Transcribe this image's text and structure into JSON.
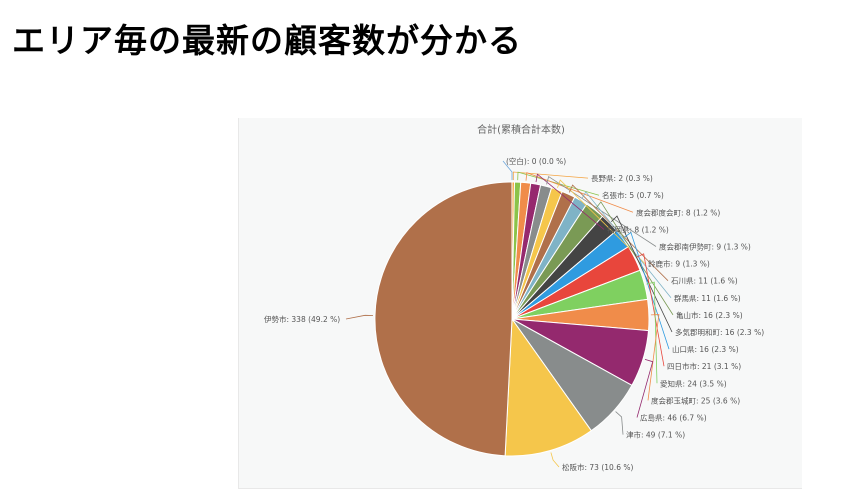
{
  "page": {
    "title": "エリア毎の最新の顧客数が分かる"
  },
  "chart_data": {
    "type": "pie",
    "title": "合計(累積合計本数)",
    "slices": [
      {
        "label": "(空白)",
        "value": 0,
        "pct": "0.0 %",
        "color": "#6fa8dc"
      },
      {
        "label": "長野県",
        "value": 2,
        "pct": "0.3 %",
        "color": "#f4a340"
      },
      {
        "label": "名張市",
        "value": 5,
        "pct": "0.7 %",
        "color": "#8bc34a"
      },
      {
        "label": "度会郡度会町",
        "value": 8,
        "pct": "1.2 %",
        "color": "#f08c4a"
      },
      {
        "label": "福岡県",
        "value": 8,
        "pct": "1.2 %",
        "color": "#96296e"
      },
      {
        "label": "度会郡南伊勢町",
        "value": 9,
        "pct": "1.3 %",
        "color": "#888c8c"
      },
      {
        "label": "鈴鹿市",
        "value": 9,
        "pct": "1.3 %",
        "color": "#f5c64b"
      },
      {
        "label": "石川県",
        "value": 11,
        "pct": "1.6 %",
        "color": "#b0704a"
      },
      {
        "label": "群馬県",
        "value": 11,
        "pct": "1.6 %",
        "color": "#7fb3c6"
      },
      {
        "label": "亀山市",
        "value": 16,
        "pct": "2.3 %",
        "color": "#7a9a55"
      },
      {
        "label": "多気郡明和町",
        "value": 16,
        "pct": "2.3 %",
        "color": "#444444"
      },
      {
        "label": "山口県",
        "value": 16,
        "pct": "2.3 %",
        "color": "#2f9be0"
      },
      {
        "label": "四日市市",
        "value": 21,
        "pct": "3.1 %",
        "color": "#e8463c"
      },
      {
        "label": "愛知県",
        "value": 24,
        "pct": "3.5 %",
        "color": "#7fd060"
      },
      {
        "label": "度会郡玉城町",
        "value": 25,
        "pct": "3.6 %",
        "color": "#f08c4a"
      },
      {
        "label": "広島県",
        "value": 46,
        "pct": "6.7 %",
        "color": "#94296e"
      },
      {
        "label": "津市",
        "value": 49,
        "pct": "7.1 %",
        "color": "#888c8c"
      },
      {
        "label": "松阪市",
        "value": 73,
        "pct": "10.6 %",
        "color": "#f5c64b"
      },
      {
        "label": "伊勢市",
        "value": 338,
        "pct": "49.2 %",
        "color": "#b0704a"
      }
    ]
  }
}
